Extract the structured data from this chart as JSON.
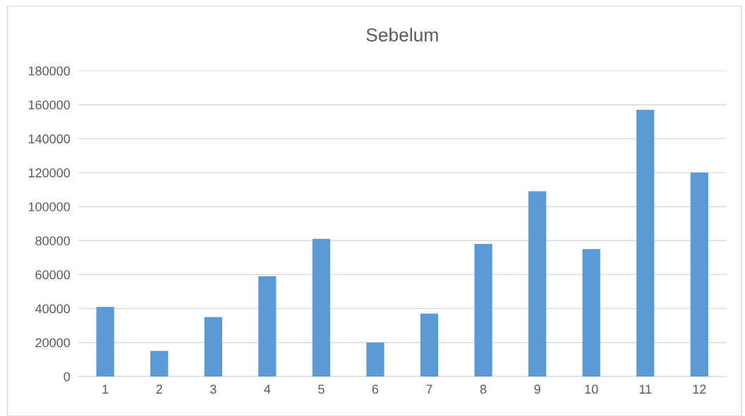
{
  "chart_data": {
    "type": "bar",
    "title": "Sebelum",
    "categories": [
      "1",
      "2",
      "3",
      "4",
      "5",
      "6",
      "7",
      "8",
      "9",
      "10",
      "11",
      "12"
    ],
    "values": [
      41000,
      15000,
      35000,
      59000,
      81000,
      20000,
      37000,
      78000,
      109000,
      75000,
      157000,
      120000
    ],
    "color": "#5b9bd5",
    "ylim": [
      0,
      180000
    ],
    "yticks": [
      0,
      20000,
      40000,
      60000,
      80000,
      100000,
      120000,
      140000,
      160000,
      180000
    ],
    "grid": "y",
    "legend": false
  }
}
